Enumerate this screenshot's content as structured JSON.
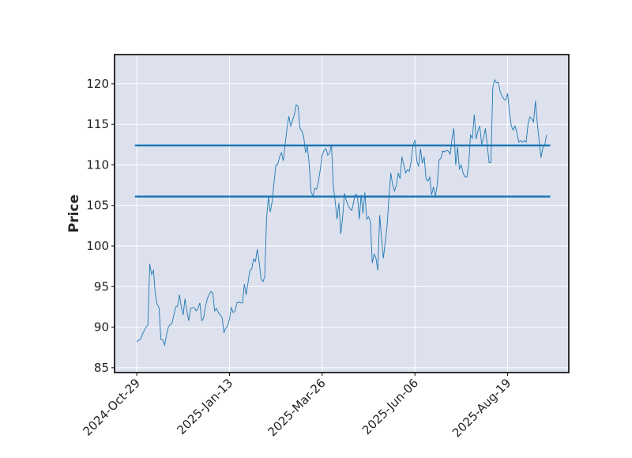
{
  "chart_data": {
    "type": "line",
    "ylabel": "Price",
    "series": [
      {
        "color": "#1f77b4",
        "values": [
          88.2,
          88.4,
          88.5,
          89.1,
          89.6,
          90,
          90.3,
          97.8,
          96.5,
          97,
          94,
          92.8,
          92.4,
          88.5,
          88.4,
          87.8,
          89,
          90,
          90.3,
          90.5,
          91.5,
          92.5,
          92.6,
          94,
          92.5,
          91.5,
          93.5,
          92,
          90.8,
          92.3,
          92.4,
          92.4,
          92,
          92.3,
          93,
          90.8,
          91.1,
          92.5,
          93.5,
          94,
          94.4,
          94.2,
          92,
          92.3,
          91.8,
          91.5,
          91.2,
          89.3,
          89.9,
          90.1,
          91,
          92.4,
          91.8,
          92,
          93,
          93.1,
          93,
          93,
          95.3,
          94,
          95.5,
          97,
          97.2,
          98.4,
          98.1,
          99.6,
          98,
          96,
          95.6,
          96.2,
          103.5,
          106,
          104.2,
          105.5,
          107.8,
          110,
          110,
          111,
          111.5,
          110.5,
          112.5,
          114.5,
          116,
          114.8,
          115.5,
          116.2,
          117.4,
          117.2,
          114.5,
          114.2,
          113.5,
          111.5,
          112.3,
          110,
          106.7,
          106.1,
          107.1,
          107,
          108,
          109.5,
          111.2,
          111.8,
          112,
          111.2,
          111.5,
          112.5,
          107.3,
          105.5,
          103.3,
          105.3,
          101.5,
          103.5,
          106.5,
          105.6,
          105,
          104.6,
          104.4,
          105.5,
          106.4,
          106.2,
          103.3,
          106.3,
          104,
          106.6,
          103.3,
          103.6,
          103,
          97.9,
          99,
          98.5,
          97,
          103.8,
          101,
          98.5,
          100.5,
          102.5,
          106,
          109,
          107.5,
          106.8,
          107.5,
          109,
          108.3,
          111,
          110,
          109,
          109.4,
          109.2,
          110.5,
          112.5,
          113,
          110.5,
          109.8,
          112,
          110.2,
          111,
          108.3,
          108,
          108.5,
          106.3,
          107.3,
          106.1,
          107.5,
          110.6,
          110.8,
          111.7,
          111.6,
          111.8,
          111.7,
          111.3,
          113.2,
          114.5,
          110,
          112.2,
          109.5,
          110,
          109,
          108.5,
          108.5,
          110,
          113.7,
          113.3,
          116.2,
          113.2,
          114.2,
          114.8,
          112.5,
          113.3,
          114.5,
          112.5,
          110.3,
          110.3,
          119.5,
          120.5,
          120.1,
          120.2,
          119,
          118.5,
          118.1,
          118,
          118.8,
          116.5,
          114.8,
          114.3,
          114.8,
          114,
          112.8,
          113,
          112.8,
          113,
          112.8,
          115,
          115.9,
          115.7,
          115.3,
          117.9,
          115.2,
          113,
          110.9,
          112.1,
          112.4,
          113.7
        ]
      }
    ],
    "hlines": {
      "color": "#1f77b4",
      "values": [
        112.4,
        106.1
      ]
    },
    "xlim": [
      -12,
      233
    ],
    "xticks": [
      {
        "value": 0,
        "label": "2024-Oct-29"
      },
      {
        "value": 50,
        "label": "2025-Jan-13"
      },
      {
        "value": 100,
        "label": "2025-Mar-26"
      },
      {
        "value": 150,
        "label": "2025-Jun-06"
      },
      {
        "value": 200,
        "label": "2025-Aug-19"
      }
    ],
    "ylim": [
      84.4,
      123.6
    ],
    "yticks": [
      85,
      90,
      95,
      100,
      105,
      110,
      115,
      120
    ],
    "grid": true,
    "background": "#dce1ed"
  }
}
